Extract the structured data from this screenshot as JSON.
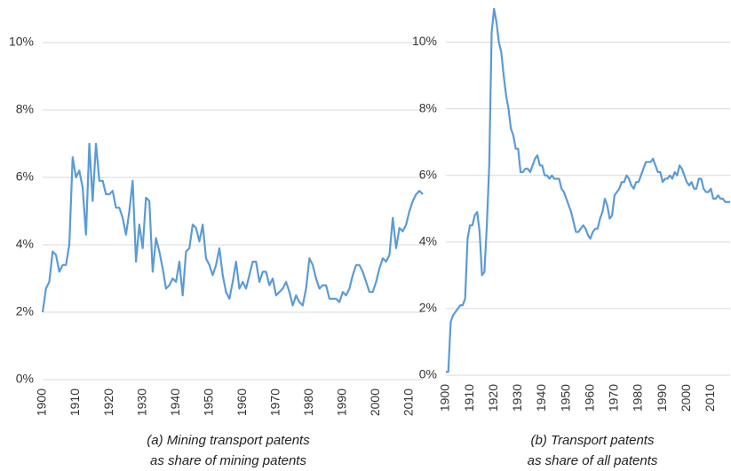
{
  "chart_data": [
    {
      "type": "line",
      "caption": [
        "(a) Mining transport patents",
        "as share of mining patents"
      ],
      "x": [
        1900,
        1901,
        1902,
        1903,
        1904,
        1905,
        1906,
        1907,
        1908,
        1909,
        1910,
        1911,
        1912,
        1913,
        1914,
        1915,
        1916,
        1917,
        1918,
        1919,
        1920,
        1921,
        1922,
        1923,
        1924,
        1925,
        1926,
        1927,
        1928,
        1929,
        1930,
        1931,
        1932,
        1933,
        1934,
        1935,
        1936,
        1937,
        1938,
        1939,
        1940,
        1941,
        1942,
        1943,
        1944,
        1945,
        1946,
        1947,
        1948,
        1949,
        1950,
        1951,
        1952,
        1953,
        1954,
        1955,
        1956,
        1957,
        1958,
        1959,
        1960,
        1961,
        1962,
        1963,
        1964,
        1965,
        1966,
        1967,
        1968,
        1969,
        1970,
        1971,
        1972,
        1973,
        1974,
        1975,
        1976,
        1977,
        1978,
        1979,
        1980,
        1981,
        1982,
        1983,
        1984,
        1985,
        1986,
        1987,
        1988,
        1989,
        1990,
        1991,
        1992,
        1993,
        1994,
        1995,
        1996,
        1997,
        1998,
        1999,
        2000,
        2001,
        2002,
        2003,
        2004,
        2005,
        2006,
        2007,
        2008,
        2009,
        2010,
        2011,
        2012,
        2013,
        2014
      ],
      "series": [
        {
          "color": "#5b9bd5",
          "values": [
            2.0,
            2.7,
            2.9,
            3.8,
            3.7,
            3.2,
            3.4,
            3.4,
            4.0,
            6.6,
            6.0,
            6.2,
            5.7,
            4.3,
            7.0,
            5.3,
            7.0,
            5.9,
            5.9,
            5.5,
            5.5,
            5.6,
            5.1,
            5.1,
            4.8,
            4.3,
            5.0,
            5.9,
            3.5,
            4.6,
            3.9,
            5.4,
            5.3,
            3.2,
            4.2,
            3.8,
            3.3,
            2.7,
            2.8,
            3.0,
            2.9,
            3.5,
            2.5,
            3.8,
            3.9,
            4.6,
            4.5,
            4.1,
            4.6,
            3.6,
            3.4,
            3.1,
            3.4,
            3.9,
            3.1,
            2.6,
            2.4,
            2.9,
            3.5,
            2.7,
            2.9,
            2.7,
            3.1,
            3.5,
            3.5,
            2.9,
            3.2,
            3.2,
            2.8,
            3.0,
            2.5,
            2.6,
            2.7,
            2.9,
            2.6,
            2.2,
            2.5,
            2.3,
            2.2,
            2.7,
            3.6,
            3.4,
            3.0,
            2.7,
            2.8,
            2.8,
            2.4,
            2.4,
            2.4,
            2.3,
            2.6,
            2.5,
            2.7,
            3.1,
            3.4,
            3.4,
            3.2,
            2.9,
            2.6,
            2.6,
            2.9,
            3.3,
            3.6,
            3.5,
            3.7,
            4.8,
            3.9,
            4.5,
            4.4,
            4.6,
            5.0,
            5.3,
            5.5,
            5.6,
            5.5
          ]
        }
      ],
      "xlim": [
        1900,
        2014
      ],
      "xticks": [
        1900,
        1910,
        1920,
        1930,
        1940,
        1950,
        1960,
        1970,
        1980,
        1990,
        2000,
        2010
      ],
      "ylim": [
        0,
        11
      ],
      "yticks": [
        {
          "value": 0,
          "label": "0%"
        },
        {
          "value": 2,
          "label": "2%"
        },
        {
          "value": 4,
          "label": "4%"
        },
        {
          "value": 6,
          "label": "6%"
        },
        {
          "value": 8,
          "label": "8%"
        },
        {
          "value": 10,
          "label": "10%"
        }
      ],
      "grid": true
    },
    {
      "type": "line",
      "caption": [
        "(b) Transport patents",
        "as share of all patents"
      ],
      "x": [
        1900,
        1901,
        1902,
        1903,
        1904,
        1905,
        1906,
        1907,
        1908,
        1909,
        1910,
        1911,
        1912,
        1913,
        1914,
        1915,
        1916,
        1917,
        1918,
        1919,
        1920,
        1921,
        1922,
        1923,
        1924,
        1925,
        1926,
        1927,
        1928,
        1929,
        1930,
        1931,
        1932,
        1933,
        1934,
        1935,
        1936,
        1937,
        1938,
        1939,
        1940,
        1941,
        1942,
        1943,
        1944,
        1945,
        1946,
        1947,
        1948,
        1949,
        1950,
        1951,
        1952,
        1953,
        1954,
        1955,
        1956,
        1957,
        1958,
        1959,
        1960,
        1961,
        1962,
        1963,
        1964,
        1965,
        1966,
        1967,
        1968,
        1969,
        1970,
        1971,
        1972,
        1973,
        1974,
        1975,
        1976,
        1977,
        1978,
        1979,
        1980,
        1981,
        1982,
        1983,
        1984,
        1985,
        1986,
        1987,
        1988,
        1989,
        1990,
        1991,
        1992,
        1993,
        1994,
        1995,
        1996,
        1997,
        1998,
        1999,
        2000,
        2001,
        2002,
        2003,
        2004,
        2005,
        2006,
        2007,
        2008,
        2009,
        2010,
        2011,
        2012,
        2013,
        2014,
        2015,
        2016,
        2017,
        2018
      ],
      "series": [
        {
          "color": "#5b9bd5",
          "values": [
            0.1,
            0.1,
            1.6,
            1.8,
            1.9,
            2.0,
            2.1,
            2.1,
            2.3,
            4.1,
            4.5,
            4.5,
            4.8,
            4.9,
            4.3,
            3.0,
            3.1,
            4.5,
            6.3,
            10.3,
            11.0,
            10.6,
            10.0,
            9.7,
            9.0,
            8.4,
            8.0,
            7.4,
            7.2,
            6.8,
            6.8,
            6.1,
            6.1,
            6.2,
            6.2,
            6.1,
            6.3,
            6.5,
            6.6,
            6.3,
            6.3,
            6.0,
            6.0,
            5.9,
            6.0,
            5.9,
            5.9,
            5.9,
            5.6,
            5.5,
            5.3,
            5.1,
            4.9,
            4.6,
            4.3,
            4.3,
            4.4,
            4.5,
            4.4,
            4.2,
            4.1,
            4.3,
            4.4,
            4.4,
            4.7,
            4.9,
            5.3,
            5.1,
            4.7,
            4.8,
            5.4,
            5.5,
            5.6,
            5.8,
            5.8,
            6.0,
            5.9,
            5.7,
            5.6,
            5.8,
            5.8,
            6.0,
            6.2,
            6.4,
            6.4,
            6.4,
            6.5,
            6.3,
            6.1,
            6.1,
            5.8,
            5.9,
            5.9,
            6.0,
            5.9,
            6.1,
            6.0,
            6.3,
            6.2,
            6.0,
            5.8,
            5.7,
            5.8,
            5.6,
            5.6,
            5.9,
            5.9,
            5.6,
            5.5,
            5.5,
            5.6,
            5.3,
            5.3,
            5.4,
            5.3,
            5.3,
            5.2,
            5.2,
            5.2
          ]
        }
      ],
      "xlim": [
        1900,
        2018
      ],
      "xticks": [
        1900,
        1910,
        1920,
        1930,
        1940,
        1950,
        1960,
        1970,
        1980,
        1990,
        2000,
        2010
      ],
      "ylim": [
        0,
        11
      ],
      "yticks": [
        {
          "value": 0,
          "label": "0%"
        },
        {
          "value": 2,
          "label": "2%"
        },
        {
          "value": 4,
          "label": "4%"
        },
        {
          "value": 6,
          "label": "6%"
        },
        {
          "value": 8,
          "label": "8%"
        },
        {
          "value": 10,
          "label": "10%"
        }
      ],
      "grid": true
    }
  ]
}
